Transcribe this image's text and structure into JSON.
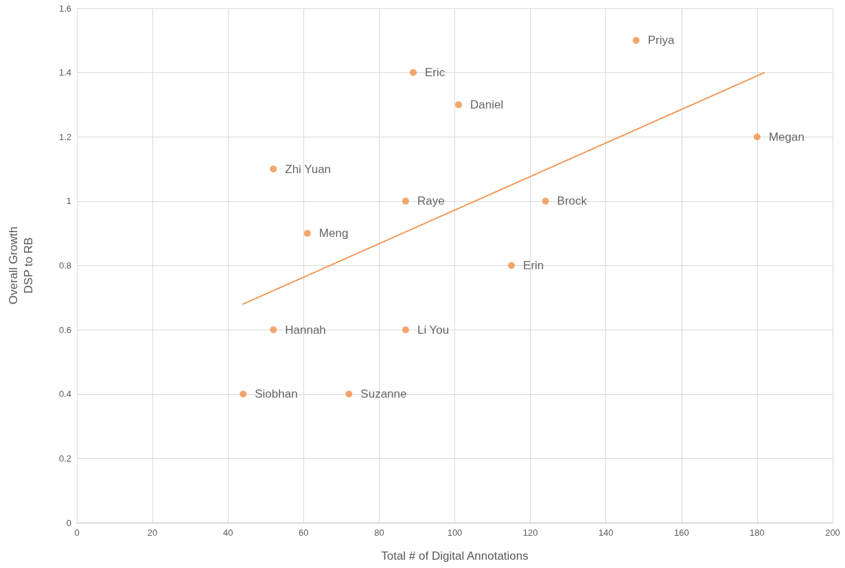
{
  "chart_data": {
    "type": "scatter",
    "xlabel": "Total # of Digital Annotations",
    "ylabel": "Overall Growth\nDSP to RB",
    "xlim": [
      0,
      200
    ],
    "xticks": [
      0,
      20,
      40,
      60,
      80,
      100,
      120,
      140,
      160,
      180,
      200
    ],
    "ylim": [
      0,
      1.6
    ],
    "yticks": [
      0,
      0.2,
      0.4,
      0.6,
      0.8,
      1,
      1.2,
      1.4,
      1.6
    ],
    "grid": true,
    "marker": "circle",
    "series": [
      {
        "color": "#f0914a",
        "x": [
          148,
          89,
          101,
          180,
          52,
          87,
          124,
          61,
          115,
          52,
          87,
          44,
          72
        ],
        "values": [
          1.5,
          1.4,
          1.3,
          1.2,
          1.1,
          1,
          1,
          0.9,
          0.8,
          0.6,
          0.6,
          0.4,
          0.4
        ]
      },
      {
        "type": "line",
        "color": "#f0914a",
        "line_style": "dotted",
        "marker": "none",
        "x": [
          44,
          182
        ],
        "values": [
          0.68,
          1.4
        ]
      }
    ],
    "annotations": [
      {
        "text": "Priya",
        "x": 148,
        "y": 1.5
      },
      {
        "text": "Eric",
        "x": 89,
        "y": 1.4
      },
      {
        "text": "Daniel",
        "x": 101,
        "y": 1.3
      },
      {
        "text": "Megan",
        "x": 180,
        "y": 1.2
      },
      {
        "text": "Zhi Yuan",
        "x": 52,
        "y": 1.1
      },
      {
        "text": "Raye",
        "x": 87,
        "y": 1
      },
      {
        "text": "Brock",
        "x": 124,
        "y": 1
      },
      {
        "text": "Meng",
        "x": 61,
        "y": 0.9
      },
      {
        "text": "Erin",
        "x": 115,
        "y": 0.8
      },
      {
        "text": "Hannah",
        "x": 52,
        "y": 0.6
      },
      {
        "text": "Li You",
        "x": 87,
        "y": 0.6
      },
      {
        "text": "Siobhan",
        "x": 44,
        "y": 0.4
      },
      {
        "text": "Suzanne",
        "x": 72,
        "y": 0.4
      }
    ]
  }
}
